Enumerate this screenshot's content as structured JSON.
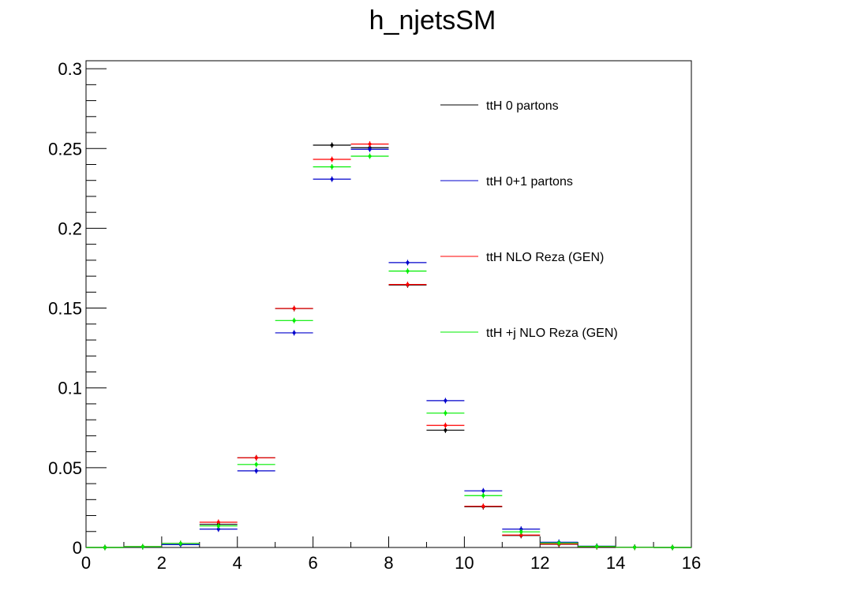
{
  "chart_data": {
    "type": "scatter",
    "title": "h_njetsSM",
    "xlabel": "",
    "ylabel": "",
    "xlim": [
      0,
      16
    ],
    "ylim": [
      0,
      0.305
    ],
    "xticks": [
      "0",
      "2",
      "4",
      "6",
      "8",
      "10",
      "12",
      "14",
      "16"
    ],
    "yticks": [
      "0",
      "0.05",
      "0.1",
      "0.15",
      "0.2",
      "0.25",
      "0.3"
    ],
    "grid": false,
    "legend_position": "top-right",
    "bin_width": 1,
    "series": [
      {
        "name": "ttH 0 partons",
        "color": "#000000",
        "x": [
          0.5,
          1.5,
          2.5,
          3.5,
          4.5,
          5.5,
          6.5,
          7.5,
          8.5,
          9.5,
          10.5,
          11.5,
          12.5,
          13.5,
          14.5,
          15.5
        ],
        "values": [
          0.0,
          0.0005,
          0.0025,
          0.0145,
          0.0562,
          0.1497,
          0.2521,
          0.2505,
          0.1645,
          0.0735,
          0.0255,
          0.0075,
          0.002,
          0.0004,
          0.0001,
          0.0
        ]
      },
      {
        "name": "ttH 0+1 partons",
        "color": "#0000cc",
        "x": [
          0.5,
          1.5,
          2.5,
          3.5,
          4.5,
          5.5,
          6.5,
          7.5,
          8.5,
          9.5,
          10.5,
          11.5,
          12.5,
          13.5,
          14.5,
          15.5
        ],
        "values": [
          0.0,
          0.0004,
          0.0018,
          0.0115,
          0.048,
          0.1345,
          0.2308,
          0.2495,
          0.1785,
          0.092,
          0.0355,
          0.0115,
          0.0033,
          0.0008,
          0.0002,
          0.0
        ]
      },
      {
        "name": "ttH NLO Reza (GEN)",
        "color": "#ff0000",
        "x": [
          0.5,
          1.5,
          2.5,
          3.5,
          4.5,
          5.5,
          6.5,
          7.5,
          8.5,
          9.5,
          10.5,
          11.5,
          12.5,
          13.5,
          14.5,
          15.5
        ],
        "values": [
          0.0,
          0.0005,
          0.0025,
          0.0158,
          0.0562,
          0.1498,
          0.2432,
          0.2528,
          0.1648,
          0.0765,
          0.0258,
          0.0078,
          0.0022,
          0.0005,
          0.0001,
          0.0
        ]
      },
      {
        "name": "ttH +j NLO Reza (GEN)",
        "color": "#00ee00",
        "x": [
          0.5,
          1.5,
          2.5,
          3.5,
          4.5,
          5.5,
          6.5,
          7.5,
          8.5,
          9.5,
          10.5,
          11.5,
          12.5,
          13.5,
          14.5,
          15.5
        ],
        "values": [
          0.0,
          0.0005,
          0.0025,
          0.0135,
          0.052,
          0.1422,
          0.2385,
          0.2452,
          0.1732,
          0.0842,
          0.0325,
          0.0098,
          0.0028,
          0.0006,
          0.0001,
          0.0
        ]
      }
    ]
  }
}
